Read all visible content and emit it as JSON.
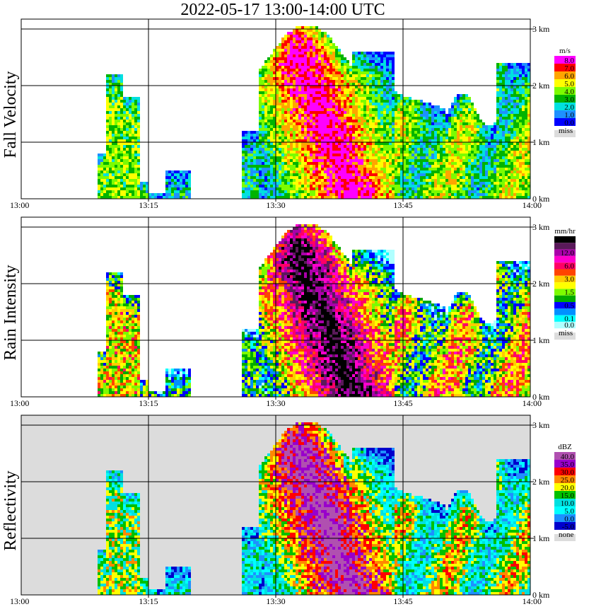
{
  "chart_data": {
    "title": "2022-05-17   13:00-14:00 UTC",
    "type": "heatmap",
    "x_ticks": [
      "13:00",
      "13:15",
      "13:30",
      "13:45",
      "14:00"
    ],
    "y_ticks": [
      "0 km",
      "1 km",
      "2 km",
      "3 km"
    ],
    "panels": [
      {
        "ylabel": "Fall Velocity",
        "unit": "m/s",
        "legend": [
          {
            "label": "8.0",
            "color": "#ff00ff"
          },
          {
            "label": "7.0",
            "color": "#ff0000"
          },
          {
            "label": "6.0",
            "color": "#ffa500"
          },
          {
            "label": "5.0",
            "color": "#ffff00"
          },
          {
            "label": "4.0",
            "color": "#7cfc00"
          },
          {
            "label": "3.0",
            "color": "#00b400"
          },
          {
            "label": "2.0",
            "color": "#00e0e0"
          },
          {
            "label": "1.0",
            "color": "#1e90ff"
          },
          {
            "label": "0.0",
            "color": "#0000ff"
          }
        ],
        "missing_label": "miss"
      },
      {
        "ylabel": "Rain Intensity",
        "unit": "mm/hr",
        "legend": [
          {
            "label": "48.0",
            "color": "#000000"
          },
          {
            "label": "",
            "color": "#5a1a5a"
          },
          {
            "label": "12.0",
            "color": "#aa00aa"
          },
          {
            "label": "",
            "color": "#ff00cc"
          },
          {
            "label": "6.0",
            "color": "#ff0066"
          },
          {
            "label": "",
            "color": "#ff4400"
          },
          {
            "label": "3.0",
            "color": "#ffcc00"
          },
          {
            "label": "",
            "color": "#ffff00"
          },
          {
            "label": "1.5",
            "color": "#7cfc00"
          },
          {
            "label": "",
            "color": "#00aa00"
          },
          {
            "label": "0.5",
            "color": "#0000ff"
          },
          {
            "label": "",
            "color": "#0090ff"
          },
          {
            "label": "0.1",
            "color": "#00ffff"
          },
          {
            "label": "0.0",
            "color": "#b0ffff"
          }
        ],
        "missing_label": "miss"
      },
      {
        "ylabel": "Reflectivity",
        "unit": "dBZ",
        "legend": [
          {
            "label": "40.0",
            "color": "#b050b0"
          },
          {
            "label": "35.0",
            "color": "#9900cc"
          },
          {
            "label": "30.0",
            "color": "#ff0000"
          },
          {
            "label": "25.0",
            "color": "#ff8800"
          },
          {
            "label": "20.0",
            "color": "#ffff00"
          },
          {
            "label": "15.0",
            "color": "#00c000"
          },
          {
            "label": "10.0",
            "color": "#00e0e0"
          },
          {
            "label": "5.0",
            "color": "#00ffff"
          },
          {
            "label": "0.0",
            "color": "#1e90ff"
          },
          {
            "label": "-5.0",
            "color": "#0000cc"
          }
        ],
        "missing_label": "none"
      }
    ]
  }
}
